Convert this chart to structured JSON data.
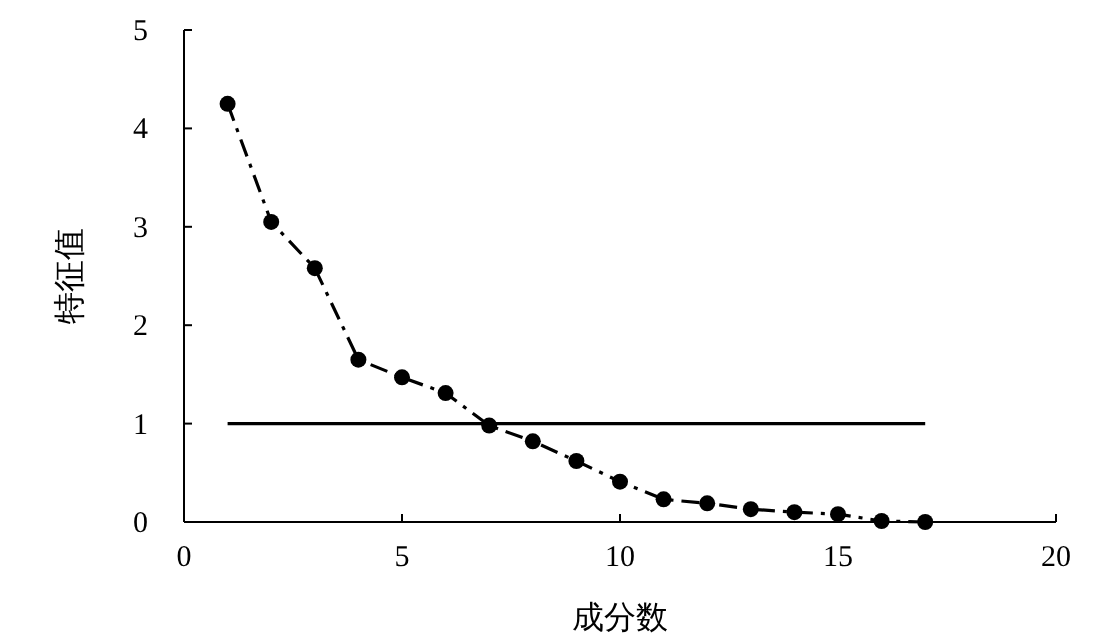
{
  "chart_data": {
    "type": "line",
    "xlabel": "成分数",
    "ylabel": "特征值",
    "xlim": [
      0,
      20
    ],
    "ylim": [
      0,
      5
    ],
    "xticks": [
      0,
      5,
      10,
      15,
      20
    ],
    "yticks": [
      0,
      1,
      2,
      3,
      4,
      5
    ],
    "grid": false,
    "series": [
      {
        "color": "#000000",
        "marker": "circle",
        "line_style": "dashdot",
        "x": [
          1,
          2,
          3,
          4,
          5,
          6,
          7,
          8,
          9,
          10,
          11,
          12,
          13,
          14,
          15,
          16,
          17
        ],
        "values": [
          4.25,
          3.05,
          2.58,
          1.65,
          1.47,
          1.31,
          0.98,
          0.82,
          0.62,
          0.41,
          0.23,
          0.19,
          0.13,
          0.1,
          0.08,
          0.01,
          0.0
        ]
      },
      {
        "type": "line",
        "color": "#000000",
        "marker": "none",
        "line_style": "solid",
        "x": [
          1,
          17
        ],
        "values": [
          1,
          1
        ]
      }
    ]
  }
}
